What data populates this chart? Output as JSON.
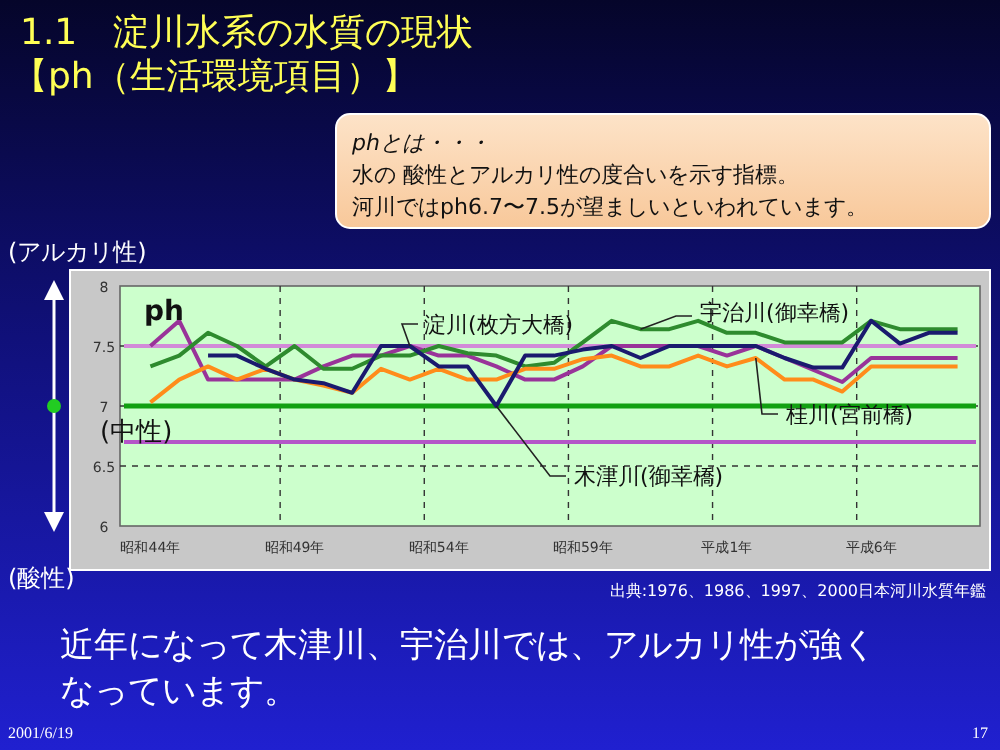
{
  "chart_data": {
    "type": "line",
    "title": "1.1　淀川水系の水質の現状",
    "subtitle": "【ph（生活環境項目）】",
    "ylabel": "ph",
    "categories": [
      "昭和44年",
      null,
      null,
      null,
      null,
      "昭和49年",
      null,
      null,
      null,
      null,
      "昭和54年",
      null,
      null,
      null,
      null,
      "昭和59年",
      null,
      null,
      null,
      null,
      "平成1年",
      null,
      null,
      null,
      null,
      "平成6年",
      null,
      null,
      null
    ],
    "ylim": [
      6,
      8
    ],
    "yticks": [
      6,
      6.5,
      7,
      7.5,
      8
    ],
    "grid": true,
    "legend": false,
    "marker": "none",
    "line_style": "solid",
    "series": [
      {
        "name": "淀川(枚方大橋)",
        "color": "#993399",
        "values": [
          7.5,
          7.71,
          7.22,
          7.22,
          7.22,
          7.22,
          7.33,
          7.42,
          7.42,
          7.5,
          7.42,
          7.42,
          7.33,
          7.22,
          7.22,
          7.33,
          7.5,
          7.5,
          7.5,
          7.5,
          7.42,
          7.5,
          7.4,
          7.3,
          7.2,
          7.4,
          7.4,
          7.4,
          7.4
        ]
      },
      {
        "name": "宇治川(御幸橋)",
        "color": "#2e8b2e",
        "values": [
          7.33,
          7.42,
          7.61,
          7.5,
          7.33,
          7.5,
          7.31,
          7.31,
          7.42,
          7.42,
          7.5,
          7.44,
          7.42,
          7.33,
          7.36,
          7.53,
          7.71,
          7.64,
          7.64,
          7.71,
          7.61,
          7.61,
          7.53,
          7.53,
          7.53,
          7.71,
          7.64,
          7.64,
          7.64
        ]
      },
      {
        "name": "桂川(宮前橋)",
        "color": "#ff8c1a",
        "values": [
          7.03,
          7.22,
          7.33,
          7.22,
          7.31,
          7.22,
          7.17,
          7.11,
          7.31,
          7.22,
          7.31,
          7.22,
          7.22,
          7.31,
          7.31,
          7.39,
          7.42,
          7.33,
          7.33,
          7.42,
          7.33,
          7.4,
          7.22,
          7.22,
          7.12,
          7.33,
          7.33,
          7.33,
          7.33
        ]
      },
      {
        "name": "木津川(御幸橋)",
        "color": "#1a1a6e",
        "values": [
          null,
          null,
          7.42,
          7.42,
          7.31,
          7.22,
          7.19,
          7.11,
          7.5,
          7.5,
          7.33,
          7.33,
          7.0,
          7.42,
          7.42,
          7.47,
          7.5,
          7.4,
          7.5,
          7.5,
          7.5,
          7.5,
          7.4,
          7.32,
          7.32,
          7.71,
          7.52,
          7.61,
          7.61
        ]
      }
    ],
    "ref_lines": [
      {
        "axis": "y",
        "value": 7.5,
        "color": "#d28ad8"
      },
      {
        "axis": "y",
        "value": 6.7,
        "color": "#b455c8"
      },
      {
        "axis": "y",
        "value": 7,
        "color": "#11a011",
        "label": "(中性)"
      }
    ],
    "annotations": [
      "phとは・・・",
      "水の 酸性とアルカリ性の度合いを示す指標。",
      "河川ではph6.7〜7.5が望ましいといわれています。",
      "(アルカリ性)",
      "(酸性)",
      "出典:1976、1986、1997、2000日本河川水質年鑑",
      "近年になって木津川、宇治川では、アルカリ性が強く",
      "なっています。",
      "2001/6/19",
      "17"
    ]
  }
}
